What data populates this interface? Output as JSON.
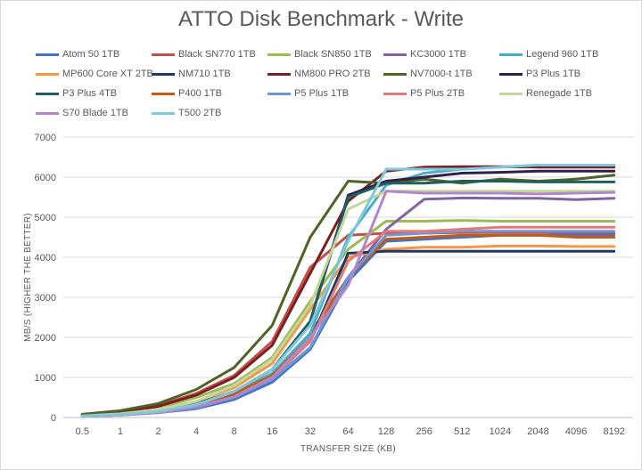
{
  "chart_data": {
    "type": "line",
    "title": "ATTO Disk Benchmark - Write",
    "xlabel": "TRANSFER SIZE (KB)",
    "ylabel": "MB/S (HIGHER THE BETTER)",
    "ylim": [
      0,
      7000
    ],
    "yticks": [
      0,
      1000,
      2000,
      3000,
      4000,
      5000,
      6000,
      7000
    ],
    "grid": true,
    "legend_position": "top",
    "categories": [
      "0.5",
      "1",
      "2",
      "4",
      "8",
      "16",
      "32",
      "64",
      "128",
      "256",
      "512",
      "1024",
      "2048",
      "4096",
      "8192"
    ],
    "series": [
      {
        "name": "Atom 50 1TB",
        "color": "#4472c4",
        "values": [
          30,
          60,
          120,
          220,
          450,
          880,
          1700,
          3400,
          4400,
          4450,
          4500,
          4550,
          4550,
          4560,
          4560
        ]
      },
      {
        "name": "Black SN770 1TB",
        "color": "#c0504d",
        "values": [
          70,
          150,
          300,
          600,
          1050,
          1900,
          3750,
          4550,
          4600,
          4600,
          4620,
          4620,
          4620,
          4620,
          4620
        ]
      },
      {
        "name": "Black SN850 1TB",
        "color": "#9bbb59",
        "values": [
          60,
          120,
          250,
          500,
          850,
          1500,
          2900,
          4200,
          4900,
          4900,
          4920,
          4900,
          4900,
          4900,
          4900
        ]
      },
      {
        "name": "KC3000 1TB",
        "color": "#8064a2",
        "values": [
          40,
          80,
          160,
          320,
          600,
          1100,
          2100,
          3500,
          4700,
          5450,
          5480,
          5470,
          5470,
          5440,
          5470
        ]
      },
      {
        "name": "Legend 960 1TB",
        "color": "#4bacc6",
        "values": [
          30,
          60,
          140,
          300,
          600,
          1100,
          2100,
          4500,
          5800,
          6100,
          6200,
          6250,
          6300,
          6300,
          6300
        ]
      },
      {
        "name": "MP600 Core XT 2TB",
        "color": "#f79646",
        "values": [
          50,
          100,
          200,
          400,
          750,
          1350,
          2700,
          4000,
          4200,
          4250,
          4250,
          4280,
          4280,
          4270,
          4270
        ]
      },
      {
        "name": "NM710 1TB",
        "color": "#1f3864",
        "values": [
          30,
          60,
          130,
          280,
          550,
          1000,
          1900,
          4100,
          4150,
          4150,
          4150,
          4150,
          4150,
          4150,
          4150
        ]
      },
      {
        "name": "NM800 PRO 2TB",
        "color": "#7b2020",
        "values": [
          60,
          130,
          280,
          560,
          1000,
          1800,
          3600,
          5400,
          6150,
          6250,
          6260,
          6260,
          6250,
          6250,
          6250
        ]
      },
      {
        "name": "NV7000-t 1TB",
        "color": "#4f6228",
        "values": [
          80,
          170,
          350,
          700,
          1250,
          2300,
          4500,
          5900,
          5850,
          5950,
          5850,
          5950,
          5900,
          5950,
          6050
        ]
      },
      {
        "name": "P3 Plus 1TB",
        "color": "#2e1f4d",
        "values": [
          40,
          80,
          170,
          340,
          650,
          1200,
          2400,
          5550,
          5900,
          6000,
          6100,
          6120,
          6150,
          6150,
          6150
        ]
      },
      {
        "name": "P3 Plus 4TB",
        "color": "#215f5e",
        "values": [
          40,
          80,
          170,
          340,
          650,
          1200,
          2400,
          5500,
          5850,
          5850,
          5900,
          5900,
          5880,
          5880,
          5880
        ]
      },
      {
        "name": "P400 1TB",
        "color": "#c55a11",
        "values": [
          40,
          80,
          160,
          320,
          600,
          1050,
          2000,
          3500,
          4450,
          4500,
          4550,
          4550,
          4550,
          4500,
          4500
        ]
      },
      {
        "name": "P5 Plus 1TB",
        "color": "#6f97d6",
        "values": [
          30,
          60,
          120,
          250,
          500,
          950,
          1750,
          3500,
          4550,
          4600,
          4650,
          4650,
          4650,
          4650,
          4650
        ]
      },
      {
        "name": "P5 Plus 2TB",
        "color": "#e07b78",
        "values": [
          30,
          60,
          130,
          270,
          520,
          1000,
          1900,
          3900,
          4650,
          4650,
          4700,
          4750,
          4750,
          4750,
          4750
        ]
      },
      {
        "name": "Renegade 1TB",
        "color": "#c3d69b",
        "values": [
          40,
          90,
          200,
          400,
          800,
          1450,
          2800,
          5200,
          5650,
          5650,
          5650,
          5650,
          5650,
          5650,
          5650
        ]
      },
      {
        "name": "S70 Blade 1TB",
        "color": "#b087c9",
        "values": [
          30,
          60,
          120,
          260,
          520,
          1000,
          2000,
          3300,
          5650,
          5600,
          5600,
          5600,
          5580,
          5600,
          5620
        ]
      },
      {
        "name": "T500 2TB",
        "color": "#7fc7dd",
        "values": [
          30,
          70,
          150,
          320,
          650,
          1200,
          2300,
          4400,
          6200,
          6200,
          6200,
          6250,
          6300,
          6300,
          6300
        ]
      }
    ]
  }
}
